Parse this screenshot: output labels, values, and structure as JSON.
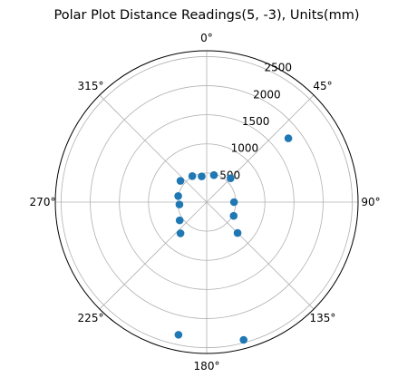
{
  "chart_data": {
    "type": "scatter",
    "projection": "polar",
    "title": "Polar Plot Distance Readings(5, -3), Units(mm)",
    "theta_zero_location": "N",
    "theta_direction": "clockwise",
    "theta_tick_labels": [
      "0°",
      "45°",
      "90°",
      "135°",
      "180°",
      "225°",
      "270°",
      "315°"
    ],
    "theta_ticks_deg": [
      0,
      45,
      90,
      135,
      180,
      225,
      270,
      315
    ],
    "r_tick_labels": [
      "500",
      "1000",
      "1500",
      "2000",
      "2500"
    ],
    "r_ticks": [
      500,
      1000,
      1500,
      2000,
      2500
    ],
    "rlim": [
      0,
      2600
    ],
    "r_label_angle_deg": 22.5,
    "grid": true,
    "marker_color": "#1f77b4",
    "points": [
      {
        "theta": 15,
        "r": 480
      },
      {
        "theta": 45,
        "r": 580
      },
      {
        "theta": 52,
        "r": 1780
      },
      {
        "theta": 90,
        "r": 470
      },
      {
        "theta": 117,
        "r": 520
      },
      {
        "theta": 135,
        "r": 750
      },
      {
        "theta": 165,
        "r": 2450
      },
      {
        "theta": 192,
        "r": 2330
      },
      {
        "theta": 220,
        "r": 700
      },
      {
        "theta": 236,
        "r": 560
      },
      {
        "theta": 265,
        "r": 470
      },
      {
        "theta": 282,
        "r": 500
      },
      {
        "theta": 309,
        "r": 580
      },
      {
        "theta": 331,
        "r": 510
      },
      {
        "theta": 349,
        "r": 450
      }
    ]
  }
}
